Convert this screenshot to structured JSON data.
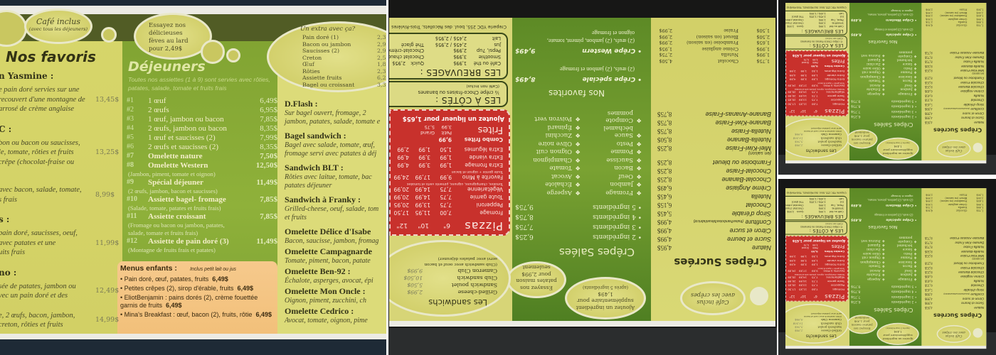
{
  "left_menu": {
    "cafe_oval": {
      "title": "Café inclus",
      "sub": "(avec tous les déjeuners)"
    },
    "feves_oval": [
      "Essayez nos",
      "délicieuses",
      "fèves au lard",
      "pour 2,49$"
    ],
    "favoris": {
      "title": "Nos favoris",
      "items": [
        {
          "name": "n Yasmine :",
          "lines": [
            "e pain doré servies sur une",
            "recouvert d'une montagne de",
            " arrosé de crème anglaise"
          ],
          "price": "13,45$"
        },
        {
          "name": "C :",
          "lines": [
            "bon ou bacon ou saucisses,",
            "le, tomate, rôties et fruits",
            " crêpe (chocolat-fraise ou"
          ],
          "price": "13,25$"
        },
        {
          "name": "",
          "lines": [
            " avec bacon, salade, tomate,",
            "s frais"
          ],
          "price": "8,99$"
        },
        {
          "name": "s :",
          "lines": [
            "pain doré, saucisses, oeuf,",
            "  avec  patates  et   une",
            "uits frais"
          ],
          "price": "11,99$"
        },
        {
          "name": "no :",
          "lines": [
            "sée de patates, jambon ou",
            "vec un pain doré et des"
          ],
          "price": "12,49$"
        },
        {
          "name": "",
          "lines": [
            "e, 2 œufs, bacon, jambon,",
            " creton, rôties et fruits"
          ],
          "price": "14,99$"
        }
      ]
    },
    "dejeuners": {
      "title": "Déjeuners",
      "subtitle": [
        "Toutes nos assiettes (1 à 9) sont servies avec rôties,",
        "patates, salade, tomate et fruits frais"
      ],
      "items": [
        {
          "num": "#1",
          "label": "1 œuf",
          "price": "6,49$"
        },
        {
          "num": "#2",
          "label": "2 œufs",
          "price": "6,95$"
        },
        {
          "num": "#3",
          "label": "1 œuf, jambon ou bacon",
          "price": "7,85$"
        },
        {
          "num": "#4",
          "label": "2 œufs, jambon ou bacon",
          "price": "8,35$"
        },
        {
          "num": "#5",
          "label": "1 œuf et saucisses (2)",
          "price": "7,99$"
        },
        {
          "num": "#6",
          "label": "2 œufs et saucisses (2)",
          "price": "8,35$"
        },
        {
          "num": "#7",
          "label": "Omelette nature",
          "price": "7,50$"
        },
        {
          "num": "#8",
          "label": "Omelette Western",
          "price": "12,50$",
          "note": "(Jambon, piment, tomate et oignon)"
        },
        {
          "num": "#9",
          "label": "Spécial déjeuner",
          "price": "11,49$",
          "note": "(2 œufs, jambon, bacon et saucisses)"
        },
        {
          "num": "#10",
          "label": "Assiette bagel- fromage",
          "price": "7,85$",
          "note": "(Salade, tomate, patates et fruits frais)"
        },
        {
          "num": "#11",
          "label": "Assiette croissant",
          "price": "7,85$",
          "note": "(Fromage ou bacon  ou jambon, patates,",
          "note2": "salade, tomate et fruits frais)"
        },
        {
          "num": "#12",
          "label": "Assiette de pain doré (3)",
          "price": "11,49$",
          "note": "(Montagne de fruits frais et patates)"
        }
      ]
    },
    "enfants": {
      "title": "Menus enfants :",
      "note": "Inclus petit lait ou jus",
      "items": [
        {
          "text": "• Pain doré, œuf, patates, fruits",
          "price": "6,49$"
        },
        {
          "text": "• Petites crêpes (2), sirop d'érable, fruits",
          "price": "6,49$"
        },
        {
          "text": "• EliotBenjamin : pains dorés (2), crème fouettée",
          "text2": "garnis de fruits",
          "price": "6,49$"
        },
        {
          "text": "• Mina's Breakfast : œuf, bacon (2), fruits, rôtie",
          "price": "6,49$"
        }
      ]
    },
    "extra": {
      "title": "Un extra avec ça?",
      "items": [
        {
          "label": "Pain doré (1)",
          "price": "2,3"
        },
        {
          "label": "Bacon ou jambon",
          "price": "2,9"
        },
        {
          "label": "Saucisses  (2)",
          "price": "2,9"
        },
        {
          "label": "Creton",
          "price": "2,5"
        },
        {
          "label": "Œuf",
          "price": "1,8"
        },
        {
          "label": "Rôties",
          "price": "2,3"
        },
        {
          "label": "Assiette fruits",
          "price": "6,2"
        },
        {
          "label": "Bagel ou croissant",
          "price": "3,3"
        }
      ]
    },
    "specials": [
      {
        "name": "D.Flash :",
        "desc": [
          "Sur  bagel  ouvert,  fromage,  2",
          "jambon, patates, salade, tomate e"
        ]
      },
      {
        "name": "Bagel sandwich :",
        "desc": [
          "Bagel avec salade, tomate, œuf,",
          "fromage servi avec patates à déj"
        ]
      },
      {
        "name": "Sandwich BLT :",
        "desc": [
          "Rôties avec laitue, tomate, bac",
          "patates déjeuner"
        ]
      },
      {
        "name": "Sandwich à Franky :",
        "desc": [
          "Grilled-cheese, oeuf, salade, tom",
          "et fruits"
        ]
      },
      {
        "name": "Omelette Délice d'Isabe",
        "desc": [
          "Bacon, saucisse, jambon, fromag"
        ]
      },
      {
        "name": "Omelette Campagnarde",
        "desc": [
          "Tomate, piment, bacon, patate"
        ]
      },
      {
        "name": "Omelette Ben-92 :",
        "desc": [
          "Échalote, asperges, avocat, épi"
        ]
      },
      {
        "name": "Omelette Mon Oncle :",
        "desc": [
          "Oignon, piment, zucchini, ch"
        ]
      },
      {
        "name": "Omelette Cedrico :",
        "desc": [
          "Avocat, tomate, oignon, pime"
        ]
      }
    ]
  },
  "crepe_menu": {
    "cafe_oval": [
      "Café inclus",
      "avec les crêpes"
    ],
    "sucrees": {
      "title": "Crêpes Sucrées",
      "items": [
        {
          "label": "Nature",
          "price": "4,95$"
        },
        {
          "label": "Sucre et beurre",
          "price": "4,99$"
        },
        {
          "label": "Citron et sucre",
          "price": "4,99$"
        },
        {
          "label": "Confiture (fraise/framboise/bleuet/abricot)",
          "price": "4,99$"
        },
        {
          "label": "Sirop d'érable",
          "price": "5,45$"
        },
        {
          "label": "Chocolat",
          "price": "6,15$"
        },
        {
          "label": "Nutella",
          "price": "6,45$"
        },
        {
          "label": "Crème Anglaise",
          "price": "6,49$"
        },
        {
          "label": "Chocolat-Banane",
          "price": "8,25$"
        },
        {
          "label": "Chocolat-Fraise",
          "price": "8,25$"
        },
        {
          "label": "Framboise ou bleuet",
          "price": "8,25$"
        },
        {
          "label": "(en saison)",
          "price": ""
        },
        {
          "label": "Miel-Kiwi-Fraise",
          "price": "8,25$"
        },
        {
          "label": "Nutella-Banane",
          "price": "8,50$"
        },
        {
          "label": "Nutella-Fraise",
          "price": "8,75$"
        },
        {
          "label": "Banane-Kiwi-Fraise",
          "price": "8,75$"
        },
        {
          "label": "Banane-Ananas-Fraise",
          "price": "8,75$"
        }
      ],
      "garnitures_left": [
        "1,75$",
        "1,99$",
        "1,99$",
        "1,65$",
        "2,50$",
        "1,50$"
      ],
      "garnitures": [
        {
          "label": "Chocolat",
          "price": "4,50$"
        },
        {
          "label": "Nutella",
          "price": "2,75$"
        },
        {
          "label": "Crème anglaise",
          "price": "1,95$"
        },
        {
          "label": "Framboise (en saison)",
          "price": "2,99$"
        },
        {
          "label": "Bleuet (en saison)",
          "price": "2,99$"
        },
        {
          "label": "Fraise",
          "price": "2,99$"
        }
      ]
    },
    "ovals": {
      "ingredient": [
        "Ajoutez un ingrédient",
        "supplémentaire pour",
        "1,49$",
        "(après 5 ingrédients)"
      ],
      "patates": [
        "Essayez nos",
        "patates maison",
        "pour 2,99$",
        "seulement"
      ]
    },
    "salees": {
      "title": "Crêpes Salées",
      "items": [
        {
          "label": "• 2 ingrédients",
          "price": "6,25$"
        },
        {
          "label": "• 3 ingrédients",
          "price": "7,75$"
        },
        {
          "label": "• 4 ingrédients",
          "price": "8,75$"
        },
        {
          "label": "• 5 ingrédients",
          "price": "9,75$"
        }
      ],
      "ingredients_left": [
        "Fromage",
        "Jambon",
        "Oeuf",
        "Bacon",
        "Saucisse",
        "Pomme",
        "Pesto",
        "Sauce béchamel",
        "Compote pommes"
      ],
      "ingredients_right": [
        "Asperge",
        "Échalote",
        "Avocat",
        "Tomate",
        "Champignon",
        "Oignon cuit",
        "Olive noire",
        "Zucchini",
        "Épinard",
        "Poivron vert"
      ],
      "favorites_title": "Nos favorites",
      "favorites": [
        {
          "label": "• Crêpe spéciale",
          "price": "8,49$",
          "desc": [
            "(2) œufs, (2) jambon et fromage"
          ]
        },
        {
          "label": "• Crêpe Western",
          "price": "9,49$",
          "desc": [
            "(2) œufs, (2) jambon, piment, tomate,",
            "oignon et fromage"
          ]
        }
      ]
    },
    "sandwichs": {
      "title": "Les sandwichs",
      "items": [
        {
          "label": "Grilled-cheese",
          "price": "2,99$"
        },
        {
          "label": "Sandwich poulet",
          "price": "5,50$"
        },
        {
          "label": "Club sandwich",
          "price": "10,50$"
        },
        {
          "label": "Cameron Club",
          "price": "9,99$"
        }
      ],
      "note": [
        "(Club sandwich avec oeuf et bacon",
        "servi avec patates déjeuner)"
      ]
    },
    "pizzas": {
      "title": "Pizzas",
      "sizes": [
        "6\"",
        "10\"",
        "12\""
      ],
      "rows": [
        {
          "label": "Fromage",
          "prices": [
            "7,00",
            "11,95",
            "17,50"
          ]
        },
        {
          "label": "Pepperoni",
          "prices": [
            "7,75",
            "13,99",
            "20,95"
          ]
        },
        {
          "label": "Toute garnie",
          "prices": [
            "7,75",
            "14,99",
            "20,99"
          ]
        },
        {
          "label": "Végétarienne",
          "prices": [
            "7,75",
            "14,99",
            "20,99"
          ]
        },
        {
          "label": "Favorite à Mino",
          "prices": [
            "9,99",
            "17,99",
            "24,99"
          ]
        },
        {
          "label": "Extra fromage",
          "prices": [
            "1,99",
            "3,99",
            "4,99"
          ]
        },
        {
          "label": "Extra viande",
          "prices": [
            "1,99",
            "3,99",
            "4,99"
          ]
        },
        {
          "label": "Extra légumes",
          "prices": [
            "1,50",
            "1,99",
            "2,99"
          ]
        }
      ],
      "veg_note": "Tomates, champignons, oignons, piments verts et tomates",
      "mino_note": "Toute garnie + oignon et bacon",
      "combo": {
        "label": "Combo frites",
        "price": "9,99"
      },
      "frites": {
        "title": "Frites",
        "sizes": [
          "Petit",
          "Grand"
        ],
        "prices": [
          "3,99",
          "5,75"
        ]
      },
      "liqueur": "Ajoutez un liqueur pour 1,65$"
    },
    "cotes": {
      "title": "LES À CÔTÉS :",
      "items": [
        "½ crêpe Choco-fraises ou bananes",
        "(Café non inclus)"
      ]
    },
    "breuvages": {
      "title": "LES BREUVAGES :",
      "items": [
        {
          "label": "Café ou thé",
          "price": "1,99$"
        },
        {
          "label": "Smoothie",
          "price": "3,99$"
        },
        {
          "label": "Pepsi, 7up",
          "price": "2,99$"
        },
        {
          "label": "Jus",
          "price": "2,45$ / 2,95$"
        },
        {
          "label": "Lait",
          "price": "2,45$ / 2,95$"
        }
      ],
      "items2": [
        {
          "label": "Quick",
          "price": "2,95$"
        },
        {
          "label": "Chocolat chaud",
          "price": ""
        },
        {
          "label": "Chocolat-crème",
          "price": ""
        },
        {
          "label": "Thé glacé",
          "price": ""
        }
      ]
    },
    "footer": "Creperie YDC 255, boul. des Récollets, Trois-Rivières"
  },
  "colors": {
    "menu_green": "#7fa231",
    "menu_yellow": "#d7d66a",
    "pizza_red": "#c8312c",
    "kids_orange": "#f4c888"
  }
}
